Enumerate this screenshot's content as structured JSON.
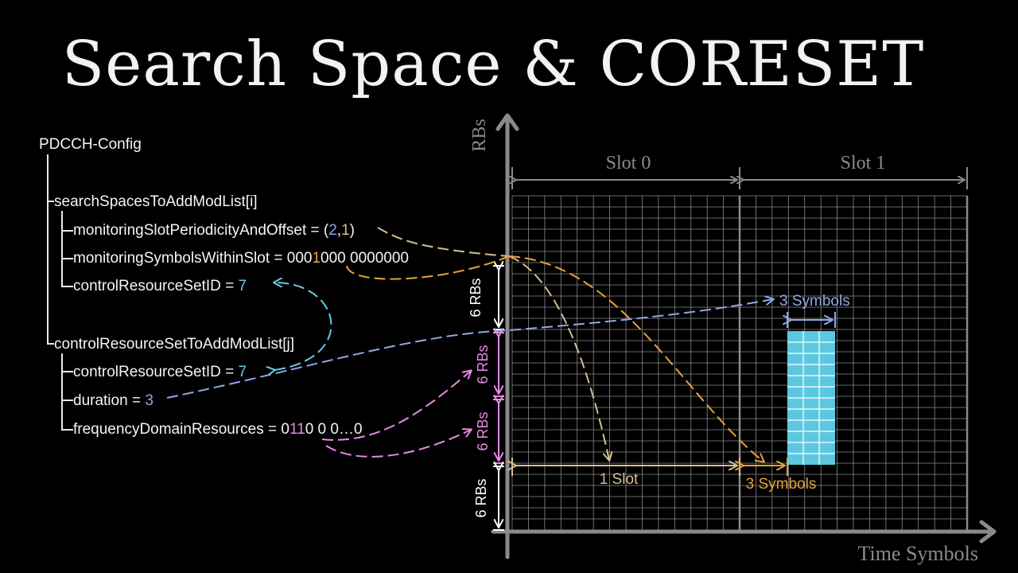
{
  "title": "Search Space & CORESET",
  "config": {
    "root": "PDCCH-Config",
    "search_spaces": "searchSpacesToAddModList[i]",
    "msp_prefix": "monitoringSlotPeriodicityAndOffset = (",
    "msp_period": "2",
    "msp_comma": ",",
    "msp_offset": "1",
    "msp_suffix": ")",
    "mss_prefix": "monitoringSymbolsWithinSlot = 000",
    "mss_bit": "1",
    "mss_suffix": "000 0000000",
    "ss_cset_label": "controlResourceSetID = ",
    "ss_cset_value": "7",
    "coresets": "controlResourceSetToAddModList[j]",
    "cs_id_label": "controlResourceSetID = ",
    "cs_id_value": "7",
    "duration_label": "duration = ",
    "duration_value": "3",
    "fdr_prefix": "frequencyDomainResources = 0",
    "fdr_bits": "11",
    "fdr_suffix": "0 0 0…0"
  },
  "diagram": {
    "y_axis_label": "RBs",
    "x_axis_label": "Time Symbols",
    "slot0": "Slot 0",
    "slot1": "Slot 1",
    "rb_label": "6 RBs",
    "one_slot": "1 Slot",
    "three_symbols_orange": "3 Symbols",
    "three_symbols_blue": "3 Symbols"
  },
  "colors": {
    "grid": "#8a8a8a",
    "coreset_fill": "#5cc8e0",
    "orange": "#e6a23c",
    "tan": "#d8bc92",
    "blue": "#8fa8e6",
    "cyan": "#6ec8e2",
    "pink": "#e88ae6"
  }
}
